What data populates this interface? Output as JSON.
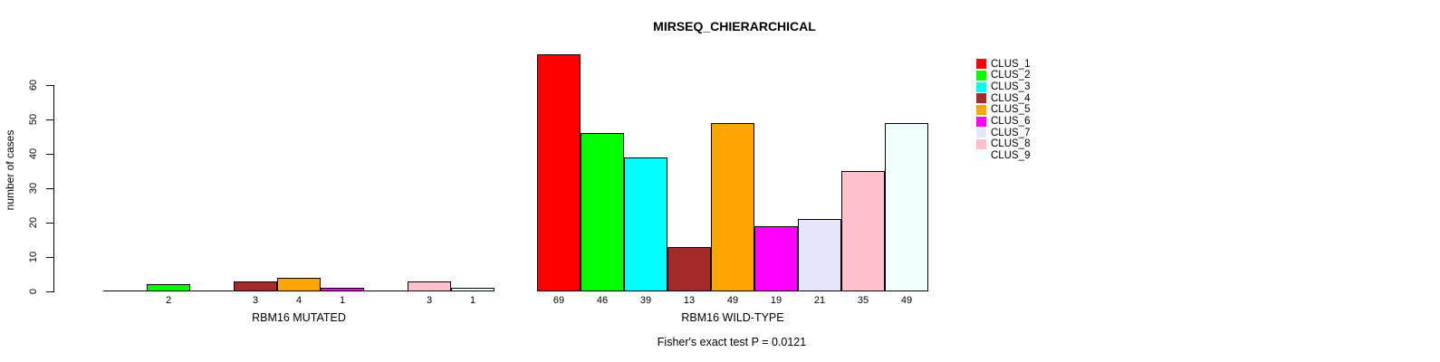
{
  "chart_data": {
    "type": "bar",
    "title": "MIRSEQ_CHIERARCHICAL",
    "ylabel": "number of cases",
    "annotation": "Fisher's exact test P = 0.0121",
    "yticks": [
      0,
      10,
      20,
      30,
      40,
      50,
      60
    ],
    "ylim": [
      0,
      69
    ],
    "grid": "off",
    "legend_position": "top-right",
    "legend": [
      {
        "label": "CLUS_1",
        "color": "#FF0000"
      },
      {
        "label": "CLUS_2",
        "color": "#00FF00"
      },
      {
        "label": "CLUS_3",
        "color": "#00FFFF"
      },
      {
        "label": "CLUS_4",
        "color": "#A52A2A"
      },
      {
        "label": "CLUS_5",
        "color": "#FFA500"
      },
      {
        "label": "CLUS_6",
        "color": "#FF00FF"
      },
      {
        "label": "CLUS_7",
        "color": "#E6E6FA"
      },
      {
        "label": "CLUS_8",
        "color": "#FFC0CB"
      },
      {
        "label": "CLUS_9",
        "color": "#F0FFFF"
      }
    ],
    "groups": [
      {
        "label": "RBM16 MUTATED",
        "values": [
          0,
          2,
          0,
          3,
          4,
          1,
          0,
          3,
          1
        ]
      },
      {
        "label": "RBM16 WILD-TYPE",
        "values": [
          69,
          46,
          39,
          13,
          49,
          19,
          21,
          35,
          49
        ]
      }
    ],
    "bar_outline_color": "#000000",
    "zero_bars_drawn_as_line": true,
    "value_labels_hidden_for_zero": true
  }
}
